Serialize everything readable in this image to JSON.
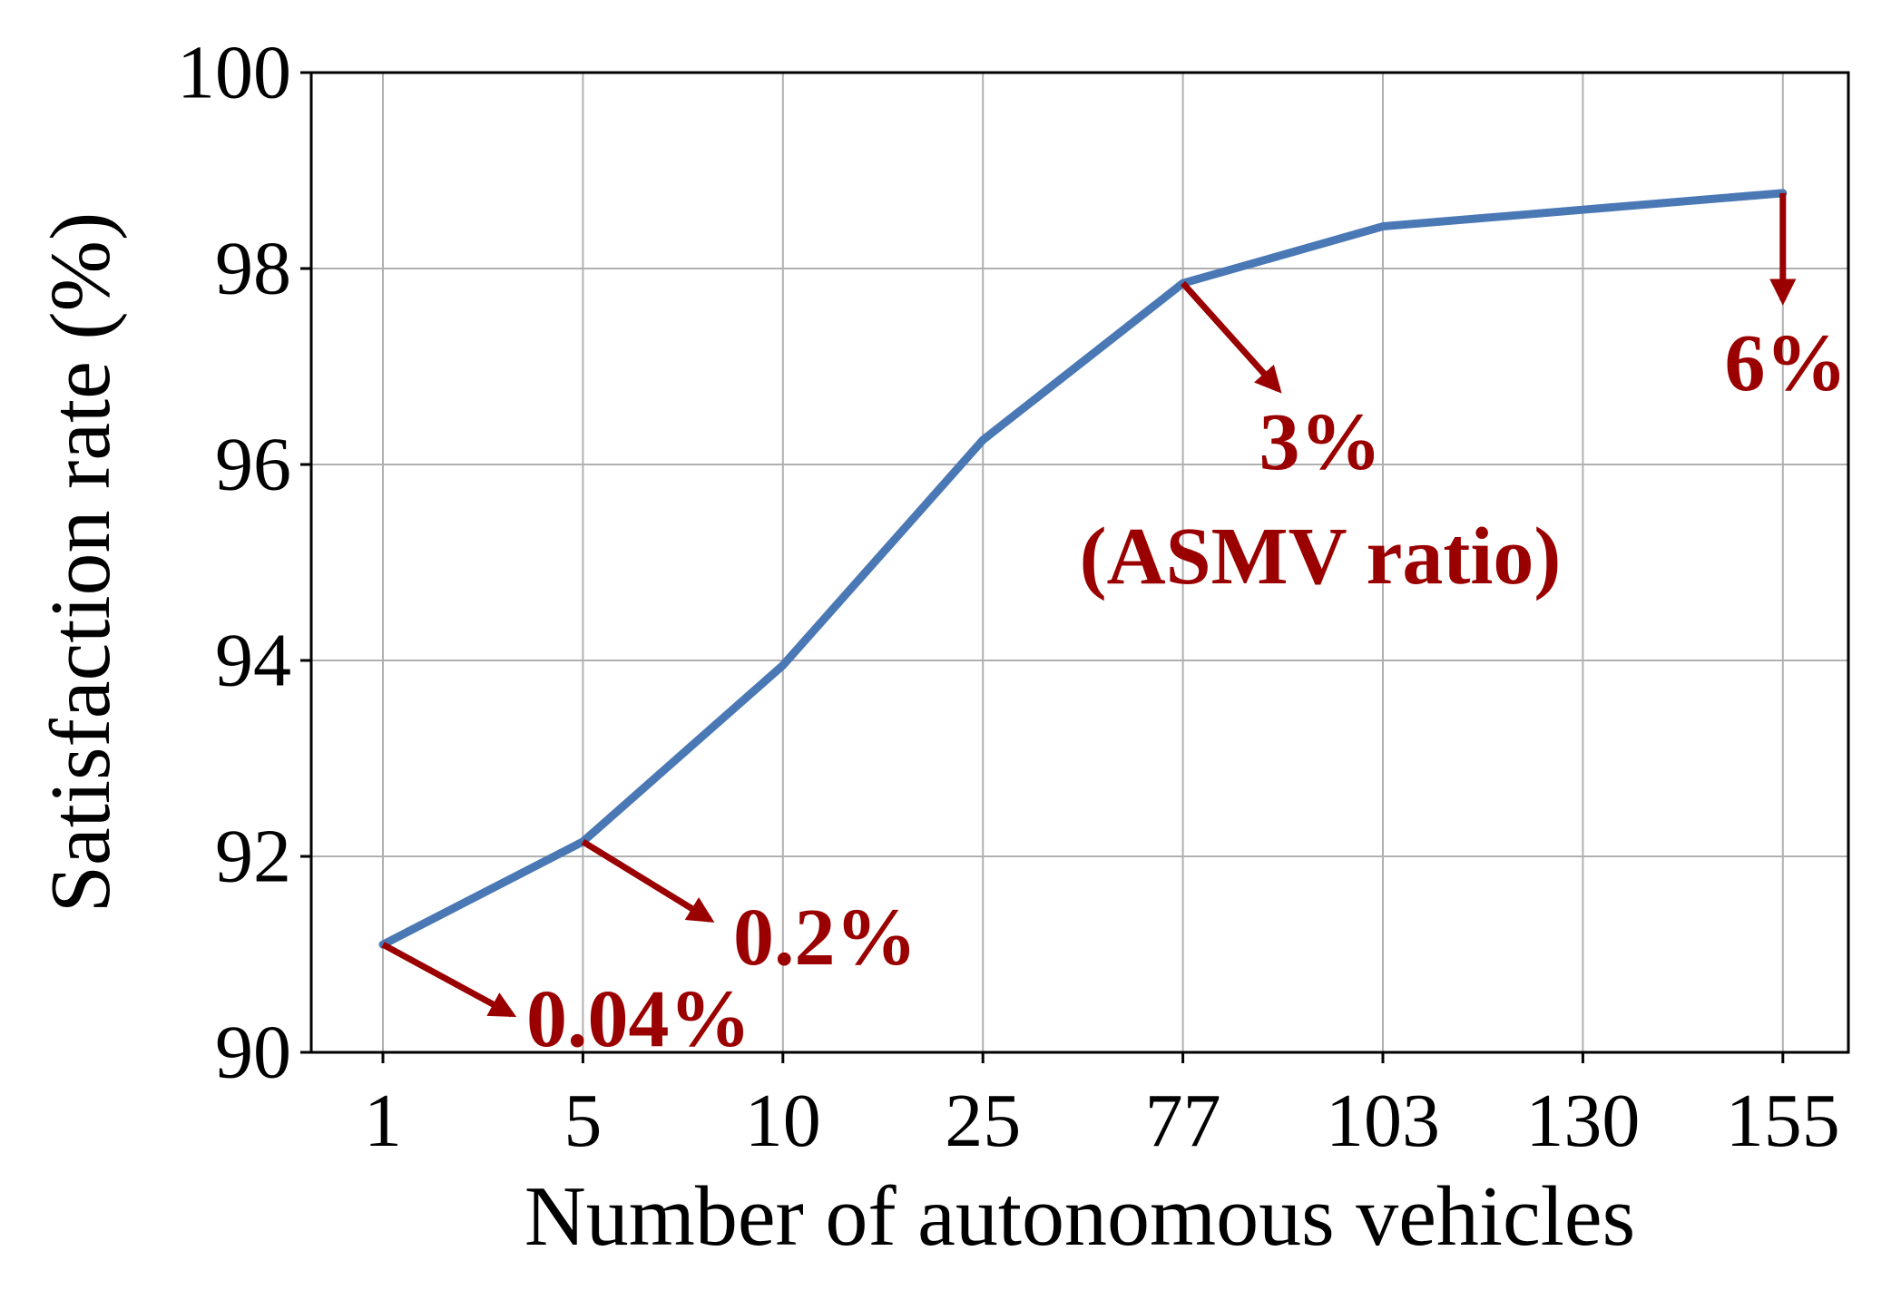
{
  "chart_data": {
    "type": "line",
    "title": "",
    "xlabel": "Number of autonomous vehicles",
    "ylabel": "Satisfaction rate (%)",
    "categories": [
      "1",
      "5",
      "10",
      "25",
      "77",
      "103",
      "130",
      "155"
    ],
    "series": [
      {
        "values": [
          91.1,
          92.15,
          93.95,
          96.25,
          97.85,
          98.43,
          98.6,
          98.77
        ],
        "color": "#4a78b5"
      }
    ],
    "ylim": [
      90,
      100
    ],
    "yticks": [
      90,
      92,
      94,
      96,
      98,
      100
    ],
    "grid": true,
    "legend": "none",
    "annotations": [
      {
        "text": "0.04%",
        "category": "1",
        "color": "#9b0000"
      },
      {
        "text": "0.2%",
        "category": "5",
        "color": "#9b0000"
      },
      {
        "text": "3%",
        "category": "77",
        "color": "#9b0000"
      },
      {
        "text": "(ASMV ratio)",
        "category": "77",
        "color": "#9b0000"
      },
      {
        "text": "6%",
        "category": "155",
        "color": "#9b0000"
      }
    ]
  }
}
